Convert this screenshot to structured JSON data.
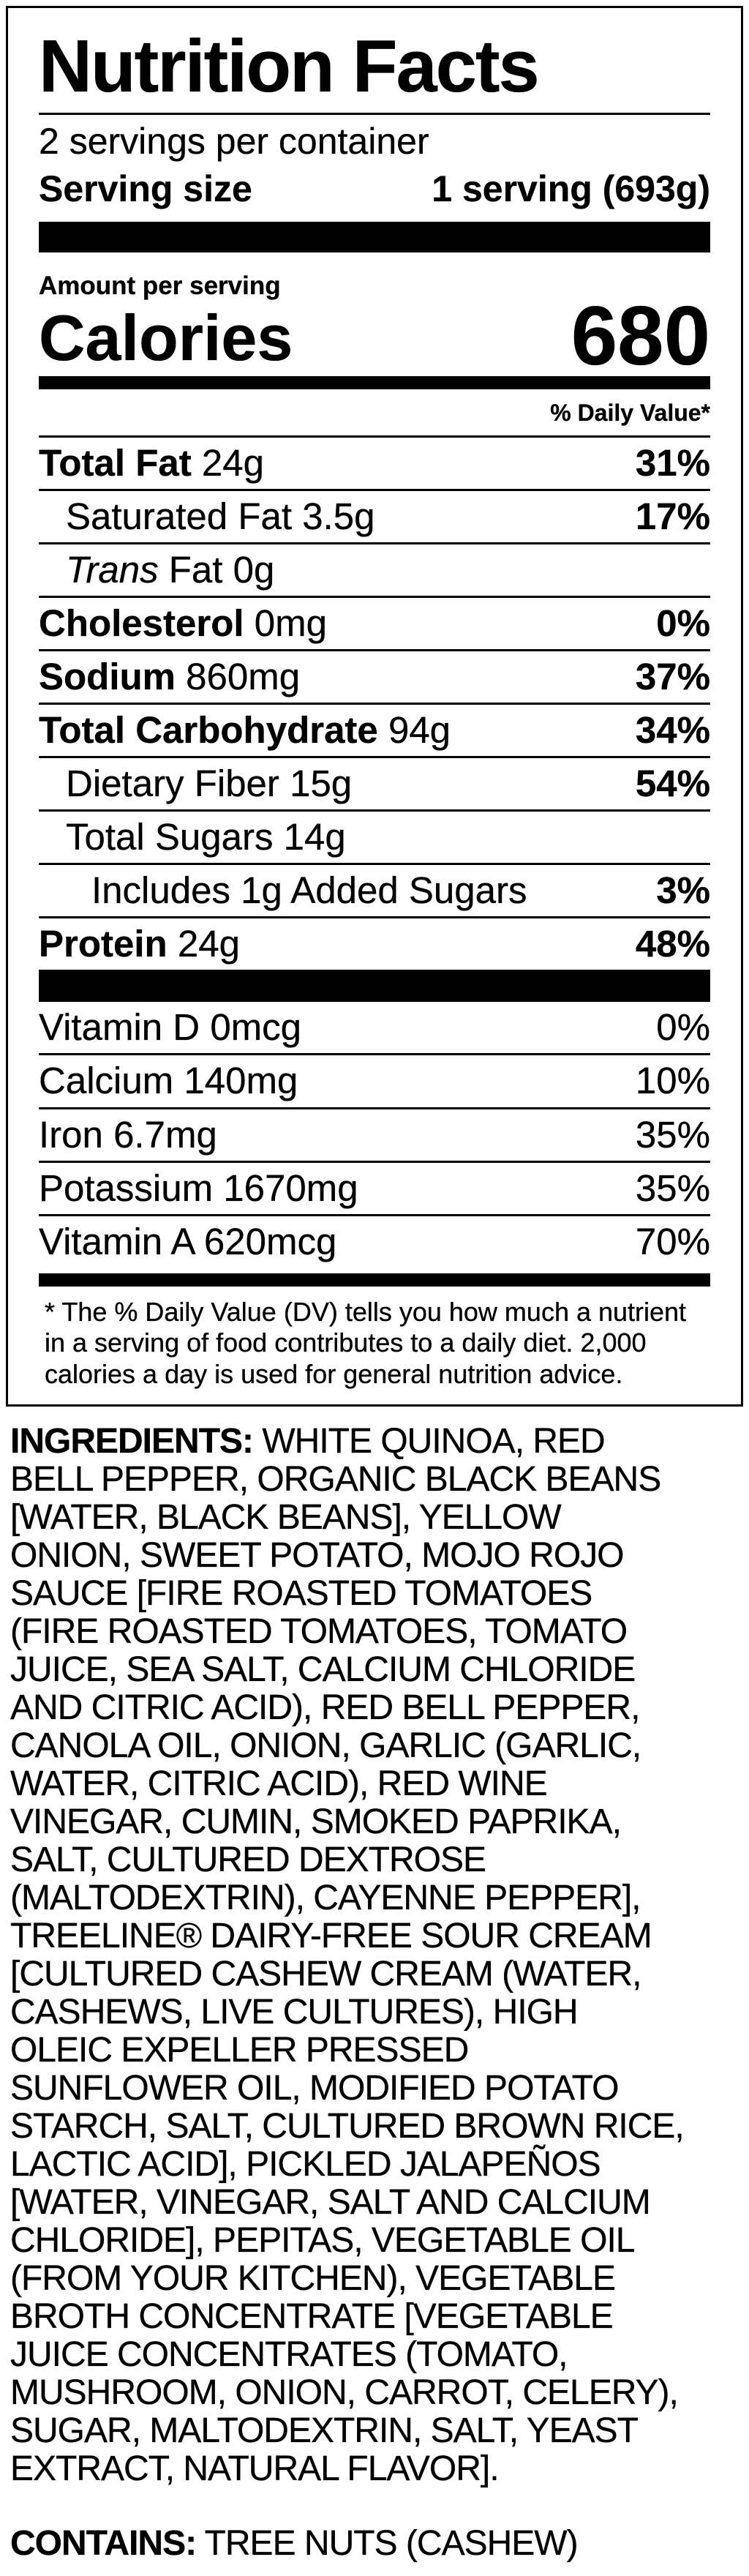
{
  "label": {
    "title": "Nutrition Facts",
    "servings_per_container": "2 servings per container",
    "serving_size_label": "Serving size",
    "serving_size_value": "1 serving (693g)",
    "amount_per_serving": "Amount per serving",
    "calories_label": "Calories",
    "calories_value": "680",
    "daily_value_header": "% Daily Value*",
    "nutrients": [
      {
        "name": "Total Fat",
        "amount": "24g",
        "dv": "31%"
      },
      {
        "name": "Saturated Fat",
        "amount": "3.5g",
        "dv": "17%"
      },
      {
        "name_italic": "Trans",
        "name_rest": "Fat",
        "amount": "0g",
        "dv": ""
      },
      {
        "name": "Cholesterol",
        "amount": "0mg",
        "dv": "0%"
      },
      {
        "name": "Sodium",
        "amount": "860mg",
        "dv": "37%"
      },
      {
        "name": "Total Carbohydrate",
        "amount": "94g",
        "dv": "34%"
      },
      {
        "name": "Dietary Fiber",
        "amount": "15g",
        "dv": "54%"
      },
      {
        "name": "Total Sugars",
        "amount": "14g",
        "dv": ""
      },
      {
        "name": "Includes 1g Added Sugars",
        "amount": "",
        "dv": "3%"
      },
      {
        "name": "Protein",
        "amount": "24g",
        "dv": "48%"
      }
    ],
    "vitamins": [
      {
        "name": "Vitamin D",
        "amount": "0mcg",
        "dv": "0%"
      },
      {
        "name": "Calcium",
        "amount": "140mg",
        "dv": "10%"
      },
      {
        "name": "Iron",
        "amount": "6.7mg",
        "dv": "35%"
      },
      {
        "name": "Potassium",
        "amount": "1670mg",
        "dv": "35%"
      },
      {
        "name": "Vitamin A",
        "amount": "620mcg",
        "dv": "70%"
      }
    ],
    "footnote": "* The % Daily Value (DV) tells you how much a nutrient in a serving of food contributes to a daily diet. 2,000 calories a day is used for general nutrition advice."
  },
  "ingredients": {
    "heading": "INGREDIENTS:",
    "text": "WHITE QUINOA, RED BELL PEPPER, ORGANIC BLACK BEANS [WATER, BLACK BEANS], YELLOW ONION, SWEET POTATO, MOJO ROJO SAUCE [FIRE ROASTED TOMATOES (FIRE ROASTED TOMATOES, TOMATO JUICE, SEA SALT, CALCIUM CHLORIDE AND CITRIC ACID), RED BELL PEPPER, CANOLA OIL, ONION, GARLIC (GARLIC, WATER, CITRIC ACID), RED WINE VINEGAR, CUMIN, SMOKED PAPRIKA, SALT, CULTURED DEXTROSE (MALTODEXTRIN), CAYENNE PEPPER], TREELINE® DAIRY-FREE SOUR CREAM [CULTURED CASHEW CREAM (WATER, CASHEWS, LIVE CULTURES), HIGH OLEIC EXPELLER PRESSED SUNFLOWER OIL, MODIFIED POTATO STARCH, SALT, CULTURED BROWN RICE, LACTIC ACID], PICKLED JALAPEÑOS [WATER, VINEGAR, SALT AND CALCIUM CHLORIDE], PEPITAS, VEGETABLE OIL (FROM YOUR KITCHEN), VEGETABLE BROTH CONCENTRATE [VEGETABLE JUICE CONCENTRATES (TOMATO, MUSHROOM, ONION, CARROT, CELERY), SUGAR, MALTODEXTRIN, SALT, YEAST EXTRACT, NATURAL FLAVOR]."
  },
  "contains": {
    "heading": "CONTAINS:",
    "text": "TREE NUTS (CASHEW)"
  }
}
